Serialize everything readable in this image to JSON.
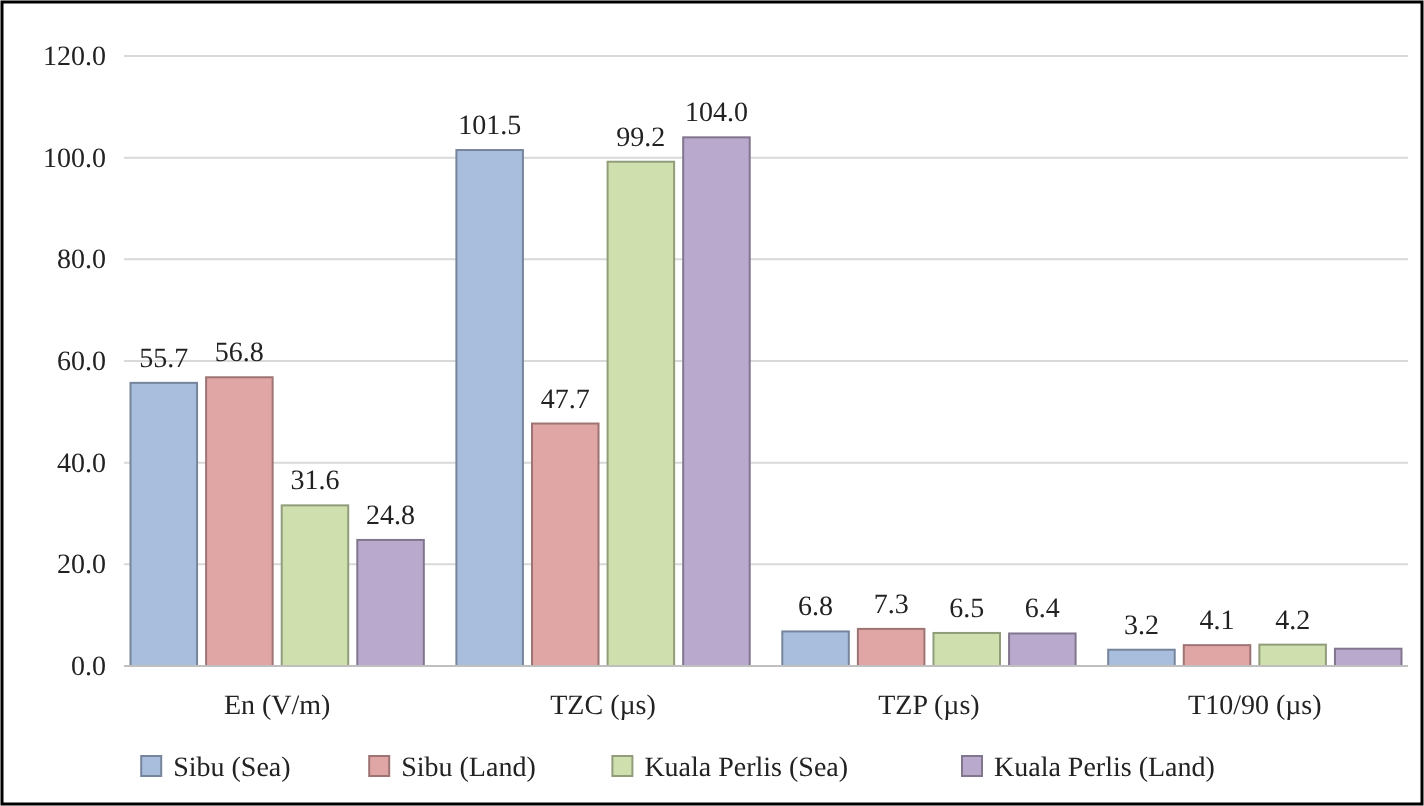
{
  "chart_data": {
    "type": "bar",
    "categories": [
      "En (V/m)",
      "TZC (µs)",
      "TZP (µs)",
      "T10/90 (µs)"
    ],
    "series": [
      {
        "name": "Sibu (Sea)",
        "color": "#a9bedd",
        "values": [
          55.7,
          101.5,
          6.8,
          3.2
        ],
        "value_labels": [
          "55.7",
          "101.5",
          "6.8",
          "3.2"
        ]
      },
      {
        "name": "Sibu (Land)",
        "color": "#e0a6a5",
        "values": [
          56.8,
          47.7,
          7.3,
          4.1
        ],
        "value_labels": [
          "56.8",
          "47.7",
          "7.3",
          "4.1"
        ]
      },
      {
        "name": "Kuala Perlis (Sea)",
        "color": "#cfe0ae",
        "values": [
          31.6,
          99.2,
          6.5,
          4.2
        ],
        "value_labels": [
          "31.6",
          "99.2",
          "6.5",
          "4.2"
        ]
      },
      {
        "name": "Kuala Perlis (Land)",
        "color": "#b9a9cc",
        "values": [
          24.8,
          104.0,
          6.4,
          3.4
        ],
        "value_labels": [
          "24.8",
          "104.0",
          "6.4",
          null
        ]
      }
    ],
    "ylim": [
      0,
      120
    ],
    "yticks": [
      {
        "value": 0,
        "label": "0.0"
      },
      {
        "value": 20,
        "label": "20.0"
      },
      {
        "value": 40,
        "label": "40.0"
      },
      {
        "value": 60,
        "label": "60.0"
      },
      {
        "value": 80,
        "label": "80.0"
      },
      {
        "value": 100,
        "label": "100.0"
      },
      {
        "value": 120,
        "label": "120.0"
      }
    ],
    "grid": "y",
    "legend": "bottom"
  }
}
